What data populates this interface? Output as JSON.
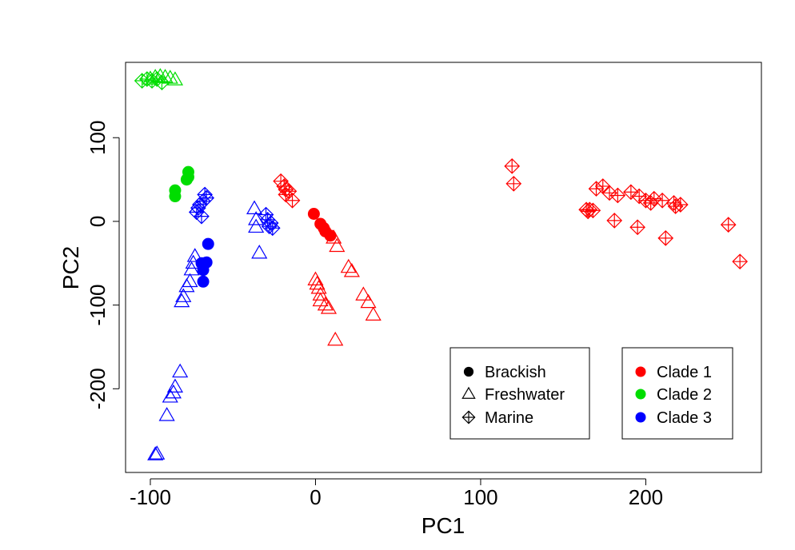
{
  "chart_data": {
    "type": "scatter",
    "title": "",
    "xlabel": "PC1",
    "ylabel": "PC2",
    "xlim": [
      -115,
      270
    ],
    "ylim": [
      -300,
      190
    ],
    "xticks": [
      -100,
      0,
      100,
      200
    ],
    "yticks": [
      -200,
      -100,
      0,
      100
    ],
    "xtick_labels": [
      "-100",
      "0",
      "100",
      "200"
    ],
    "ytick_labels": [
      "-200",
      "-100",
      "0",
      "100"
    ],
    "grid": false,
    "legends": [
      {
        "placement": "bottom-center",
        "entries": [
          {
            "label": "Brackish",
            "shape": "circle"
          },
          {
            "label": "Freshwater",
            "shape": "triangle"
          },
          {
            "label": "Marine",
            "shape": "diamond-plus"
          }
        ]
      },
      {
        "placement": "bottom-right",
        "entries": [
          {
            "label": "Clade 1",
            "color": "#ff0000"
          },
          {
            "label": "Clade 2",
            "color": "#00dd00"
          },
          {
            "label": "Clade 3",
            "color": "#0000ff"
          }
        ]
      }
    ],
    "colors": {
      "Clade 1": "#ff0000",
      "Clade 2": "#00dd00",
      "Clade 3": "#0000ff"
    },
    "series": [
      {
        "habitat": "Brackish",
        "clade": "Clade 1",
        "shape": "circle",
        "points": [
          [
            -1,
            9
          ],
          [
            3,
            -3
          ],
          [
            5,
            -8
          ],
          [
            6,
            -12
          ],
          [
            9,
            -17
          ]
        ]
      },
      {
        "habitat": "Brackish",
        "clade": "Clade 2",
        "shape": "circle",
        "points": [
          [
            -85,
            30
          ],
          [
            -85,
            37
          ],
          [
            -78,
            50
          ],
          [
            -77,
            53
          ],
          [
            -77,
            59
          ]
        ]
      },
      {
        "habitat": "Brackish",
        "clade": "Clade 3",
        "shape": "circle",
        "points": [
          [
            -65,
            -27
          ],
          [
            -66,
            -49
          ],
          [
            -69,
            -50
          ],
          [
            -68,
            -58
          ],
          [
            -68,
            -72
          ]
        ]
      },
      {
        "habitat": "Freshwater",
        "clade": "Clade 1",
        "shape": "triangle",
        "points": [
          [
            0,
            -70
          ],
          [
            1,
            -75
          ],
          [
            2,
            -80
          ],
          [
            3,
            -88
          ],
          [
            3,
            -95
          ],
          [
            6,
            -100
          ],
          [
            8,
            -104
          ],
          [
            11,
            -20
          ],
          [
            13,
            -30
          ],
          [
            20,
            -55
          ],
          [
            22,
            -60
          ],
          [
            29,
            -88
          ],
          [
            32,
            -97
          ],
          [
            35,
            -112
          ],
          [
            12,
            -142
          ]
        ]
      },
      {
        "habitat": "Freshwater",
        "clade": "Clade 2",
        "shape": "triangle",
        "points": [
          [
            -100,
            170
          ],
          [
            -97,
            172
          ],
          [
            -94,
            173
          ],
          [
            -91,
            172
          ],
          [
            -88,
            171
          ],
          [
            -85,
            169
          ]
        ]
      },
      {
        "habitat": "Freshwater",
        "clade": "Clade 3",
        "shape": "triangle",
        "points": [
          [
            -73,
            -42
          ],
          [
            -74,
            -50
          ],
          [
            -75,
            -58
          ],
          [
            -76,
            -72
          ],
          [
            -78,
            -78
          ],
          [
            -80,
            -90
          ],
          [
            -81,
            -96
          ],
          [
            -37,
            15
          ],
          [
            -36,
            2
          ],
          [
            -36,
            -7
          ],
          [
            -34,
            -38
          ],
          [
            -82,
            -180
          ],
          [
            -85,
            -198
          ],
          [
            -86,
            -205
          ],
          [
            -88,
            -210
          ],
          [
            -90,
            -232
          ],
          [
            -96,
            -278
          ],
          [
            -97,
            -279
          ]
        ]
      },
      {
        "habitat": "Marine",
        "clade": "Clade 1",
        "shape": "diamond-plus",
        "points": [
          [
            -21,
            48
          ],
          [
            -19,
            42
          ],
          [
            -18,
            38
          ],
          [
            -16,
            36
          ],
          [
            -18,
            32
          ],
          [
            -14,
            25
          ],
          [
            119,
            66
          ],
          [
            120,
            45
          ],
          [
            164,
            14
          ],
          [
            165,
            12
          ],
          [
            166,
            14
          ],
          [
            168,
            13
          ],
          [
            170,
            39
          ],
          [
            174,
            42
          ],
          [
            178,
            34
          ],
          [
            183,
            31
          ],
          [
            191,
            35
          ],
          [
            196,
            30
          ],
          [
            200,
            25
          ],
          [
            203,
            22
          ],
          [
            205,
            27
          ],
          [
            210,
            25
          ],
          [
            217,
            22
          ],
          [
            218,
            18
          ],
          [
            221,
            20
          ],
          [
            181,
            1
          ],
          [
            195,
            -7
          ],
          [
            212,
            -20
          ],
          [
            250,
            -4
          ],
          [
            257,
            -48
          ]
        ]
      },
      {
        "habitat": "Marine",
        "clade": "Clade 2",
        "shape": "diamond-plus",
        "points": [
          [
            -105,
            168
          ],
          [
            -102,
            170
          ],
          [
            -99,
            168
          ],
          [
            -96,
            170
          ],
          [
            -93,
            166
          ]
        ]
      },
      {
        "habitat": "Marine",
        "clade": "Clade 3",
        "shape": "diamond-plus",
        "points": [
          [
            -67,
            32
          ],
          [
            -68,
            24
          ],
          [
            -70,
            20
          ],
          [
            -71,
            16
          ],
          [
            -72,
            11
          ],
          [
            -69,
            6
          ],
          [
            -66,
            28
          ],
          [
            -30,
            8
          ],
          [
            -29,
            2
          ],
          [
            -27,
            -2
          ],
          [
            -28,
            -6
          ],
          [
            -26,
            -8
          ]
        ]
      }
    ]
  }
}
